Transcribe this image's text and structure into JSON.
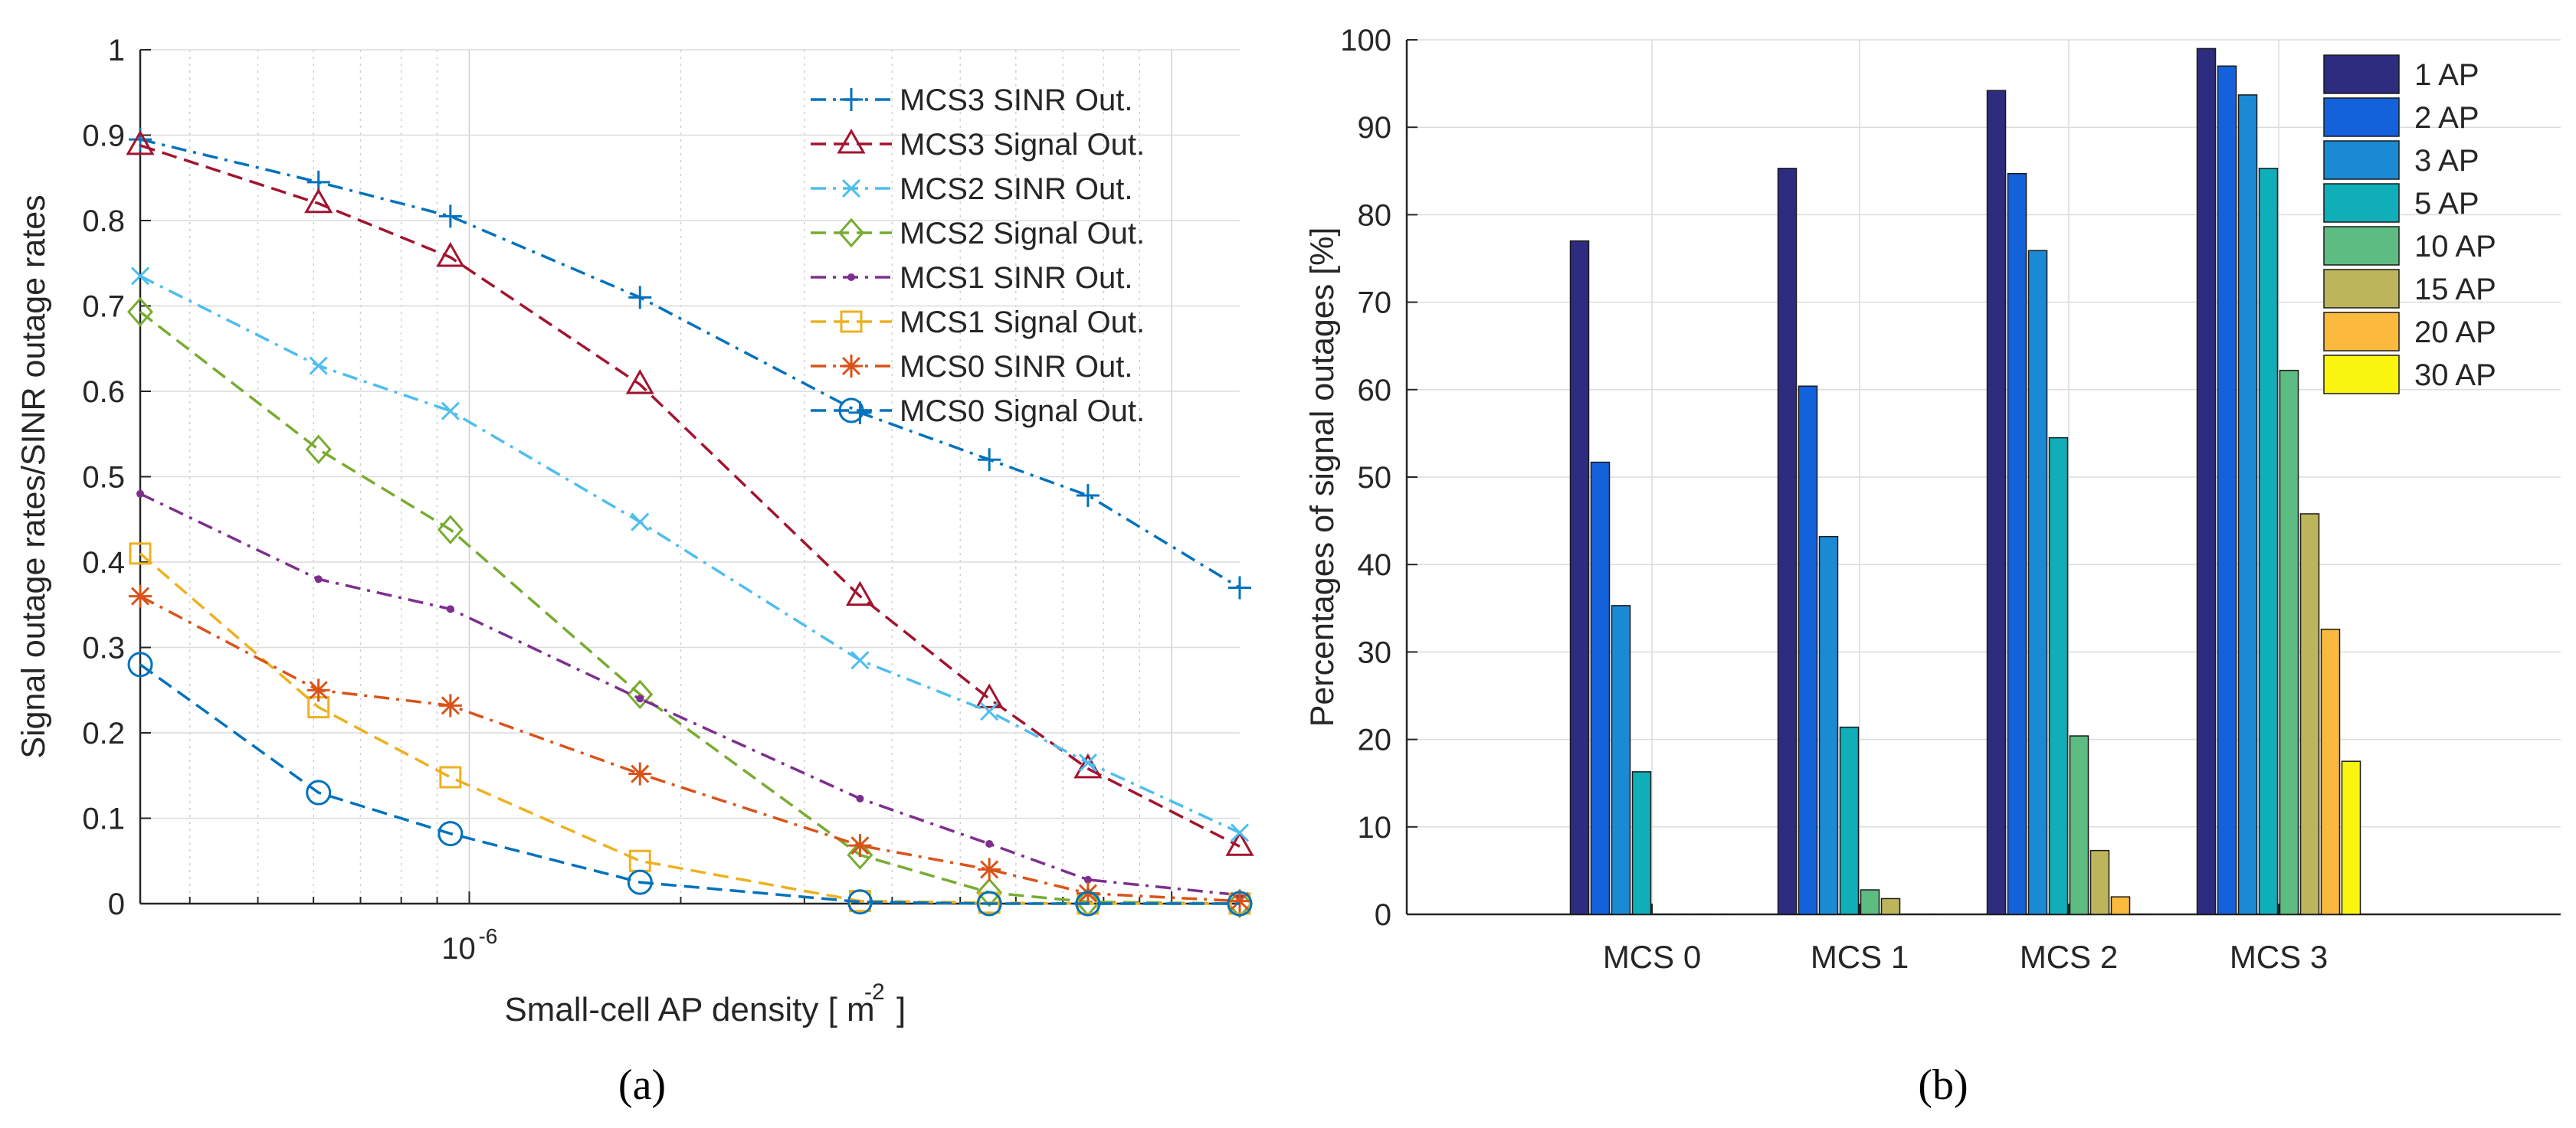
{
  "captions": {
    "a": "(a)",
    "b": "(b)"
  },
  "chart_data": [
    {
      "type": "line",
      "panel": "a",
      "xscale": "log",
      "xlabel": "Small-cell AP density [ m",
      "xlabel_sup": "-2",
      "xlabel_end": "]",
      "ylabel": "Signal outage rates/SINR outage rates",
      "ylim": [
        0,
        1
      ],
      "xlim": [
        3.4e-07,
        1.25e-05
      ],
      "x_tick_label": {
        "base": "10",
        "exp": "-6",
        "value": 1e-06
      },
      "y_ticks": [
        0,
        0.1,
        0.2,
        0.3,
        0.4,
        0.5,
        0.6,
        0.7,
        0.8,
        0.9,
        1
      ],
      "y_tick_labels": [
        "0",
        "0.1",
        "0.2",
        "0.3",
        "0.4",
        "0.5",
        "0.6",
        "0.7",
        "0.8",
        "0.9",
        "1"
      ],
      "grid": true,
      "legend_position": "top-right",
      "x": [
        3.4e-07,
        6.1e-07,
        9.4e-07,
        1.75e-06,
        3.6e-06,
        5.5e-06,
        7.6e-06,
        1.25e-05
      ],
      "series": [
        {
          "name": "MCS3 SINR Out.",
          "color": "#0072BD",
          "dash": "dashdot",
          "marker": "plus",
          "values": [
            0.895,
            0.845,
            0.805,
            0.71,
            0.575,
            0.52,
            0.478,
            0.37
          ]
        },
        {
          "name": "MCS3 Signal Out.",
          "color": "#A2142F",
          "dash": "dash",
          "marker": "triangle",
          "values": [
            0.888,
            0.82,
            0.757,
            0.608,
            0.36,
            0.24,
            0.158,
            0.067
          ]
        },
        {
          "name": "MCS2 SINR Out.",
          "color": "#4DBEEE",
          "dash": "dashdot",
          "marker": "x",
          "values": [
            0.735,
            0.63,
            0.577,
            0.447,
            0.285,
            0.225,
            0.165,
            0.083
          ]
        },
        {
          "name": "MCS2 Signal Out.",
          "color": "#77AC30",
          "dash": "dash",
          "marker": "diamond",
          "values": [
            0.693,
            0.532,
            0.438,
            0.245,
            0.057,
            0.013,
            0.002,
            0.0
          ]
        },
        {
          "name": "MCS1 SINR Out.",
          "color": "#7E2F8E",
          "dash": "dashdot",
          "marker": "dot",
          "values": [
            0.48,
            0.38,
            0.345,
            0.24,
            0.123,
            0.07,
            0.028,
            0.01
          ]
        },
        {
          "name": "MCS1 Signal Out.",
          "color": "#EDB120",
          "dash": "dash",
          "marker": "square",
          "values": [
            0.41,
            0.23,
            0.148,
            0.05,
            0.003,
            0.001,
            0.0,
            0.0
          ]
        },
        {
          "name": "MCS0 SINR Out.",
          "color": "#D95319",
          "dash": "dashdot",
          "marker": "star",
          "values": [
            0.36,
            0.25,
            0.232,
            0.152,
            0.068,
            0.04,
            0.012,
            0.003
          ]
        },
        {
          "name": "MCS0 Signal Out.",
          "color": "#0072BD",
          "dash": "dash",
          "marker": "circle",
          "values": [
            0.28,
            0.13,
            0.082,
            0.025,
            0.002,
            0.0,
            0.0,
            0.0
          ]
        }
      ]
    },
    {
      "type": "bar",
      "panel": "b",
      "ylabel": "Percentages of signal outages [%]",
      "ylim": [
        0,
        100
      ],
      "y_ticks": [
        0,
        10,
        20,
        30,
        40,
        50,
        60,
        70,
        80,
        90,
        100
      ],
      "y_tick_labels": [
        "0",
        "10",
        "20",
        "30",
        "40",
        "50",
        "60",
        "70",
        "80",
        "90",
        "100"
      ],
      "categories": [
        "MCS 0",
        "MCS 1",
        "MCS 2",
        "MCS 3"
      ],
      "grid": true,
      "legend_position": "top-right",
      "series": [
        {
          "name": "1 AP",
          "color": "#2E2C7E",
          "values": [
            77,
            85.3,
            94.2,
            99
          ]
        },
        {
          "name": "2 AP",
          "color": "#1461DC",
          "values": [
            51.7,
            60.4,
            84.7,
            97
          ]
        },
        {
          "name": "3 AP",
          "color": "#1A8AD4",
          "values": [
            35.3,
            43.2,
            75.9,
            93.7
          ]
        },
        {
          "name": "5 AP",
          "color": "#0FAEB9",
          "values": [
            16.3,
            21.4,
            54.5,
            85.3
          ]
        },
        {
          "name": "10 AP",
          "color": "#5DBC82",
          "values": [
            0,
            2.8,
            20.4,
            62.2
          ]
        },
        {
          "name": "15 AP",
          "color": "#BDB55B",
          "values": [
            0,
            1.8,
            7.3,
            45.8
          ]
        },
        {
          "name": "20 AP",
          "color": "#FBBA3D",
          "values": [
            0,
            0,
            2.0,
            32.6
          ]
        },
        {
          "name": "30 AP",
          "color": "#F9F50E",
          "values": [
            0,
            0,
            0,
            17.5
          ]
        }
      ]
    }
  ]
}
